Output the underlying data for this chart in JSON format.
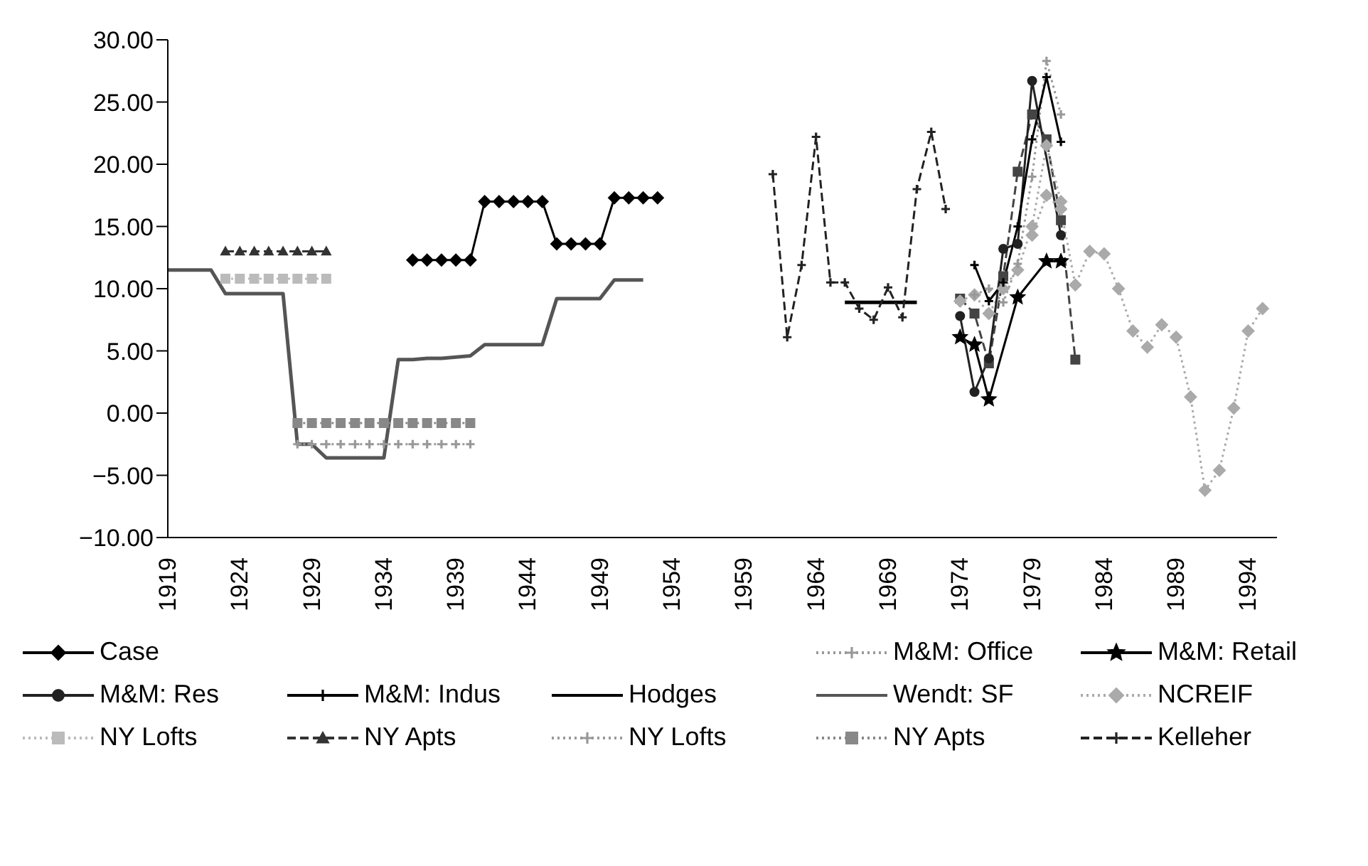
{
  "chart_data": {
    "type": "line",
    "legend": "bottom",
    "xlim": [
      1919,
      1996
    ],
    "xticks": [
      1919,
      1924,
      1929,
      1934,
      1939,
      1944,
      1949,
      1954,
      1959,
      1964,
      1969,
      1974,
      1979,
      1984,
      1989,
      1994
    ],
    "ylim": [
      -10,
      30
    ],
    "yticks": [
      {
        "value": -10,
        "label": "−10.00"
      },
      {
        "value": -5,
        "label": "−5.00"
      },
      {
        "value": 0,
        "label": "0.00"
      },
      {
        "value": 5,
        "label": "5.00"
      },
      {
        "value": 10,
        "label": "10.00"
      },
      {
        "value": 15,
        "label": "15.00"
      },
      {
        "value": 20,
        "label": "20.00"
      },
      {
        "value": 25,
        "label": "25.00"
      },
      {
        "value": 30,
        "label": "30.00"
      }
    ],
    "series": [
      {
        "name": "Case",
        "color": "#000000",
        "marker": "diamond",
        "line_style": "solid",
        "x": [
          1936,
          1937,
          1938,
          1939,
          1940,
          1941,
          1942,
          1943,
          1944,
          1945,
          1946,
          1947,
          1948,
          1949,
          1950,
          1951,
          1952,
          1953
        ],
        "values": [
          12.3,
          12.3,
          12.3,
          12.3,
          12.3,
          17.0,
          17.0,
          17.0,
          17.0,
          17.0,
          13.6,
          13.6,
          13.6,
          13.6,
          17.3,
          17.3,
          17.3,
          17.3
        ]
      },
      {
        "color": "#444444",
        "marker": "square",
        "line_style": "dashed",
        "x": [
          1974,
          1975,
          1976,
          1977,
          1978,
          1979,
          1980,
          1981,
          1982
        ],
        "values": [
          9.2,
          8.0,
          4.0,
          11.0,
          19.4,
          24.0,
          22.0,
          15.5,
          4.3
        ]
      },
      {
        "color": "#aaaaaa",
        "marker": "diamond",
        "line_style": "dotted",
        "x": [
          1974,
          1975,
          1976,
          1977,
          1978,
          1979,
          1980,
          1981
        ],
        "values": [
          9.0,
          9.5,
          8.0,
          10.0,
          11.5,
          15.0,
          21.5,
          17.0
        ]
      },
      {
        "name": "M&M: Office",
        "color": "#999999",
        "marker": "cross",
        "line_style": "dotted",
        "x": [
          1975,
          1976,
          1977,
          1978,
          1979,
          1980,
          1981
        ],
        "values": [
          9.5,
          10.0,
          8.9,
          12.0,
          19.0,
          28.3,
          24.0
        ]
      },
      {
        "name": "M&M: Retail",
        "color": "#000000",
        "marker": "star",
        "line_style": "solid",
        "x": [
          1974,
          1975,
          1976,
          1978,
          1980,
          1981
        ],
        "values": [
          6.1,
          5.5,
          1.1,
          9.3,
          12.2,
          12.2
        ]
      },
      {
        "name": "M&M: Res",
        "color": "#222222",
        "marker": "circle",
        "line_style": "solid",
        "x": [
          1974,
          1975,
          1976,
          1977,
          1978,
          1979,
          1981
        ],
        "values": [
          7.8,
          1.7,
          4.4,
          13.2,
          13.6,
          26.7,
          14.3
        ]
      },
      {
        "name": "M&M: Indus",
        "color": "#000000",
        "marker": "cross",
        "line_style": "solid",
        "x": [
          1975,
          1976,
          1977,
          1978,
          1979,
          1980,
          1981
        ],
        "values": [
          11.9,
          9.0,
          10.5,
          15.0,
          22.0,
          27.0,
          21.8
        ]
      },
      {
        "name": "Hodges",
        "color": "#000000",
        "marker": "none",
        "line_style": "solid",
        "x": [
          1966,
          1967,
          1968,
          1969,
          1970,
          1971
        ],
        "values": [
          8.9,
          8.9,
          8.9,
          8.9,
          8.9,
          8.9
        ]
      },
      {
        "name": "Wendt: SF",
        "color": "#555555",
        "marker": "none",
        "line_style": "solid",
        "x": [
          1919,
          1920,
          1921,
          1922,
          1923,
          1924,
          1925,
          1926,
          1927,
          1928,
          1929,
          1930,
          1931,
          1932,
          1933,
          1934,
          1935,
          1936,
          1937,
          1938,
          1939,
          1940,
          1941,
          1942,
          1943,
          1944,
          1945,
          1946,
          1947,
          1948,
          1949,
          1950,
          1951,
          1952
        ],
        "values": [
          11.5,
          11.5,
          11.5,
          11.5,
          9.6,
          9.6,
          9.6,
          9.6,
          9.6,
          -2.5,
          -2.5,
          -3.6,
          -3.6,
          -3.6,
          -3.6,
          -3.6,
          4.3,
          4.3,
          4.4,
          4.4,
          4.5,
          4.6,
          5.5,
          5.5,
          5.5,
          5.5,
          5.5,
          9.2,
          9.2,
          9.2,
          9.2,
          10.7,
          10.7,
          10.7
        ]
      },
      {
        "name": "NCREIF",
        "color": "#aaaaaa",
        "marker": "diamond",
        "line_style": "dotted",
        "x": [
          1979,
          1980,
          1981,
          1982,
          1983,
          1984,
          1985,
          1986,
          1987,
          1988,
          1989,
          1990,
          1991,
          1992,
          1993,
          1994,
          1995
        ],
        "values": [
          14.3,
          17.5,
          16.4,
          10.3,
          13.0,
          12.8,
          10.0,
          6.6,
          5.3,
          7.1,
          6.1,
          1.3,
          -6.2,
          -4.6,
          0.4,
          6.6,
          8.4
        ]
      },
      {
        "name": "NY Lofts",
        "color": "#bbbbbb",
        "marker": "square",
        "line_style": "dotted",
        "x": [
          1923,
          1924,
          1925,
          1926,
          1927,
          1928,
          1929,
          1930
        ],
        "values": [
          10.8,
          10.8,
          10.8,
          10.8,
          10.8,
          10.8,
          10.8,
          10.8
        ]
      },
      {
        "name": "NY Apts",
        "color": "#333333",
        "marker": "triangle",
        "line_style": "dashed",
        "x": [
          1923,
          1924,
          1925,
          1926,
          1927,
          1928,
          1929,
          1930
        ],
        "values": [
          13.0,
          13.0,
          13.0,
          13.0,
          13.0,
          13.0,
          13.0,
          13.0
        ]
      },
      {
        "name": "NY Lofts",
        "color": "#999999",
        "marker": "cross",
        "line_style": "dotted",
        "x": [
          1928,
          1929,
          1930,
          1931,
          1932,
          1933,
          1934,
          1935,
          1936,
          1937,
          1938,
          1939,
          1940
        ],
        "values": [
          -2.5,
          -2.5,
          -2.5,
          -2.5,
          -2.5,
          -2.5,
          -2.5,
          -2.5,
          -2.5,
          -2.5,
          -2.5,
          -2.5,
          -2.5
        ]
      },
      {
        "name": "NY Apts",
        "color": "#888888",
        "marker": "square",
        "line_style": "dotted",
        "x": [
          1928,
          1929,
          1930,
          1931,
          1932,
          1933,
          1934,
          1935,
          1936,
          1937,
          1938,
          1939,
          1940
        ],
        "values": [
          -0.8,
          -0.8,
          -0.8,
          -0.8,
          -0.8,
          -0.8,
          -0.8,
          -0.8,
          -0.8,
          -0.8,
          -0.8,
          -0.8,
          -0.8
        ]
      },
      {
        "name": "Kelleher",
        "color": "#222222",
        "marker": "cross",
        "line_style": "dashed",
        "x": [
          1961,
          1962,
          1963,
          1964,
          1965,
          1966,
          1967,
          1968,
          1969,
          1970,
          1971,
          1972,
          1973
        ],
        "values": [
          19.2,
          6.1,
          11.9,
          22.2,
          10.5,
          10.5,
          8.4,
          7.5,
          10.1,
          7.7,
          18.0,
          22.6,
          16.4
        ]
      }
    ]
  }
}
